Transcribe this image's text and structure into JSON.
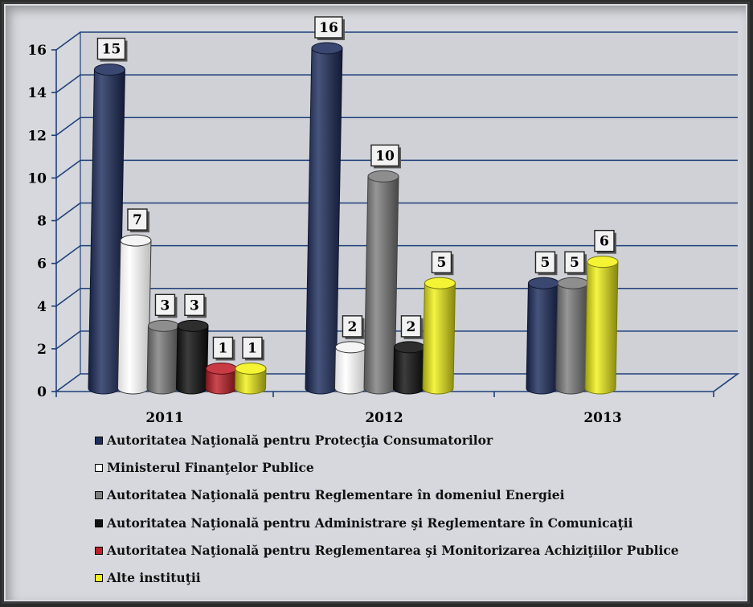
{
  "chart_data": {
    "type": "bar",
    "title": "",
    "xlabel": "",
    "ylabel": "",
    "categories": [
      "2011",
      "2012",
      "2013"
    ],
    "ylim": [
      0,
      16
    ],
    "yticks": [
      0,
      2,
      4,
      6,
      8,
      10,
      12,
      14,
      16
    ],
    "yticks_text": [
      "0",
      "2",
      "4",
      "6",
      "8",
      "10",
      "12",
      "14",
      "16"
    ],
    "grid": true,
    "legend_position": "bottom",
    "series": [
      {
        "name": "Autoritatea Naţională pentru Protecţia Consumatorilor",
        "color": "#1f2e5e",
        "values": [
          15,
          16,
          5
        ],
        "labels": [
          "15",
          "16",
          "5"
        ]
      },
      {
        "name": "Ministerul Finanţelor Publice",
        "color": "#ffffff",
        "values": [
          7,
          2,
          null
        ],
        "labels": [
          "7",
          "2",
          ""
        ]
      },
      {
        "name": "Autoritatea Naţională pentru Reglementare în domeniul Energiei",
        "color": "#7f7f7f",
        "values": [
          3,
          10,
          5
        ],
        "labels": [
          "3",
          "10",
          "5"
        ]
      },
      {
        "name": "Autoritatea Naţională pentru Administrare şi Reglementare în Comunicaţii",
        "color": "#111111",
        "values": [
          3,
          2,
          null
        ],
        "labels": [
          "3",
          "2",
          ""
        ]
      },
      {
        "name": "Autoritatea Naţională pentru Reglementarea şi Monitorizarea Achiziţiilor Publice",
        "color": "#c0202a",
        "values": [
          1,
          null,
          null
        ],
        "labels": [
          "1",
          "",
          ""
        ]
      },
      {
        "name": "Alte instituţii",
        "color": "#f2f21a",
        "values": [
          1,
          5,
          6
        ],
        "labels": [
          "1",
          "5",
          "6"
        ]
      }
    ]
  }
}
